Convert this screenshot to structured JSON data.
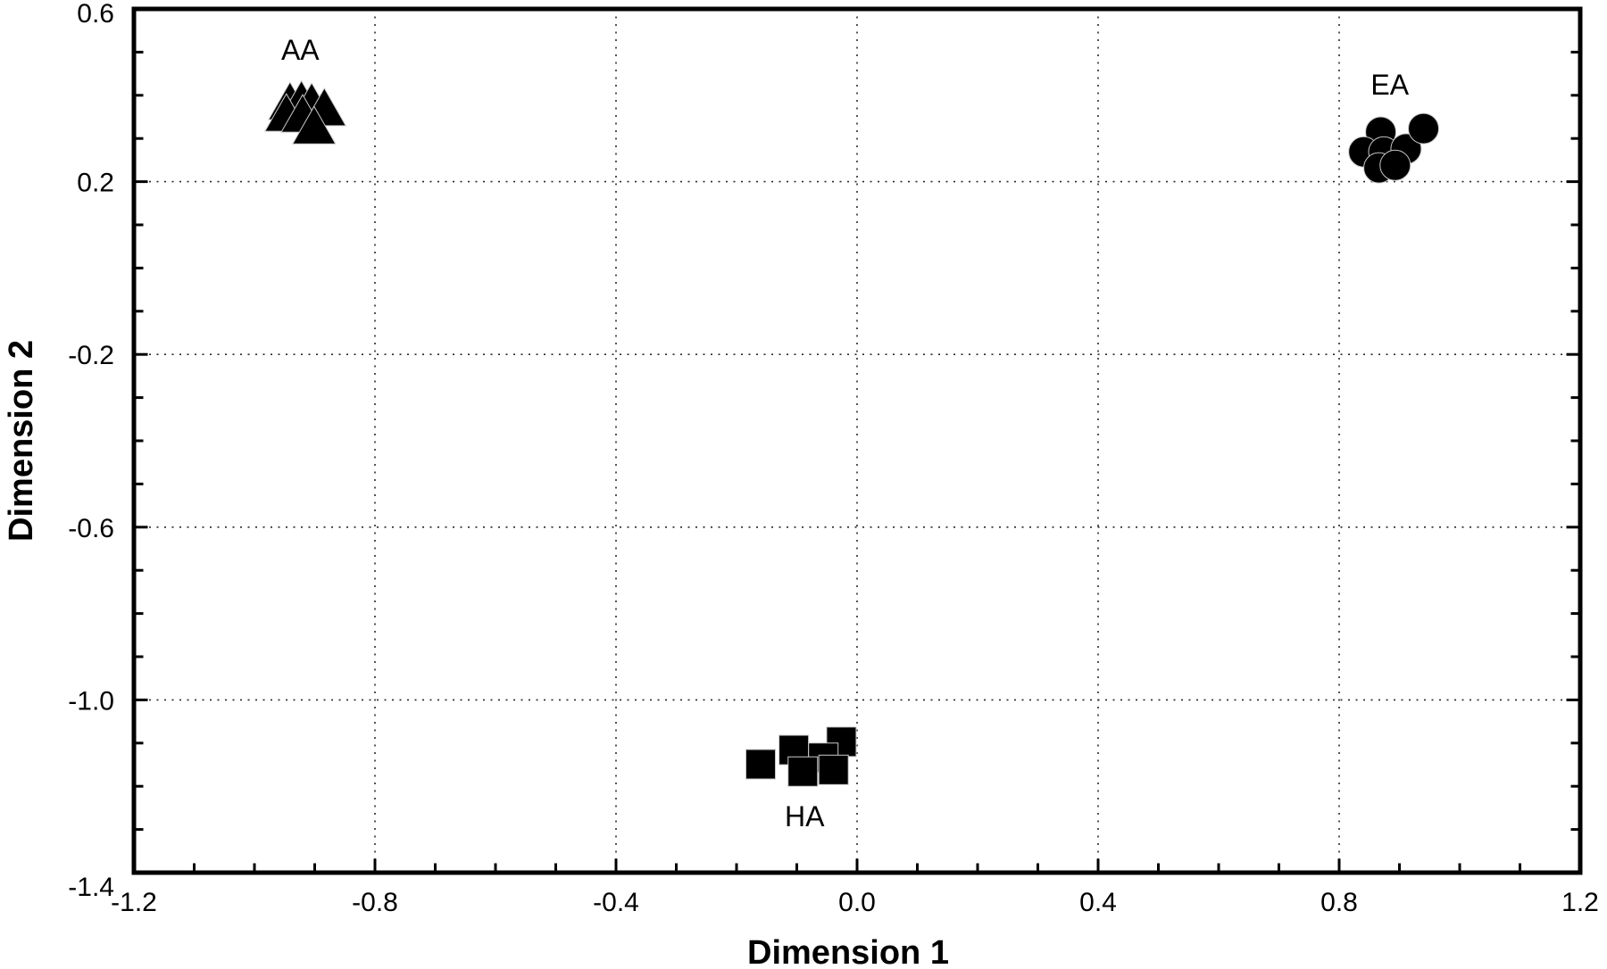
{
  "figure": {
    "background": "#ffffff",
    "foreground": "#000000"
  },
  "chart_data": {
    "type": "scatter",
    "title": "",
    "xlabel": "Dimension 1",
    "ylabel": "Dimension 2",
    "xlim": [
      -1.2,
      1.2
    ],
    "ylim": [
      -1.4,
      0.6
    ],
    "x_major_ticks": [
      -1.2,
      -0.8,
      -0.4,
      0.0,
      0.4,
      0.8,
      1.2
    ],
    "x_tick_labels": [
      "-1.2",
      "-0.8",
      "-0.4",
      "0.0",
      "0.4",
      "0.8",
      "1.2"
    ],
    "y_major_ticks": [
      0.6,
      0.2,
      -0.2,
      -0.6,
      -1.0,
      -1.4
    ],
    "y_tick_labels": [
      "0.6",
      "0.2",
      "-0.2",
      "-0.6",
      "-1.0",
      "-1.4"
    ],
    "minor_tick_step": 0.1,
    "grid_x": [
      -0.8,
      -0.4,
      0.0,
      0.4,
      0.8
    ],
    "grid_y": [
      0.2,
      -0.2,
      -0.6,
      -1.0
    ],
    "grid_style": "dotted",
    "legend_position": "none",
    "marker_color": "#000000",
    "series": [
      {
        "name": "AA",
        "marker": "triangle",
        "label_pos": [
          -0.924,
          0.505
        ],
        "points": [
          [
            -0.941,
            0.387
          ],
          [
            -0.922,
            0.39
          ],
          [
            -0.905,
            0.385
          ],
          [
            -0.884,
            0.373
          ],
          [
            -0.947,
            0.36
          ],
          [
            -0.92,
            0.358
          ],
          [
            -0.901,
            0.331
          ]
        ]
      },
      {
        "name": "EA",
        "marker": "circle",
        "label_pos": [
          0.884,
          0.424
        ],
        "points": [
          [
            0.869,
            0.315
          ],
          [
            0.841,
            0.269
          ],
          [
            0.874,
            0.269
          ],
          [
            0.911,
            0.276
          ],
          [
            0.866,
            0.232
          ],
          [
            0.893,
            0.238
          ],
          [
            0.94,
            0.323
          ]
        ]
      },
      {
        "name": "HA",
        "marker": "square",
        "label_pos": [
          -0.087,
          -1.27
        ],
        "points": [
          [
            -0.16,
            -1.149
          ],
          [
            -0.105,
            -1.116
          ],
          [
            -0.026,
            -1.097
          ],
          [
            -0.056,
            -1.134
          ],
          [
            -0.09,
            -1.166
          ],
          [
            -0.039,
            -1.162
          ]
        ]
      }
    ]
  }
}
